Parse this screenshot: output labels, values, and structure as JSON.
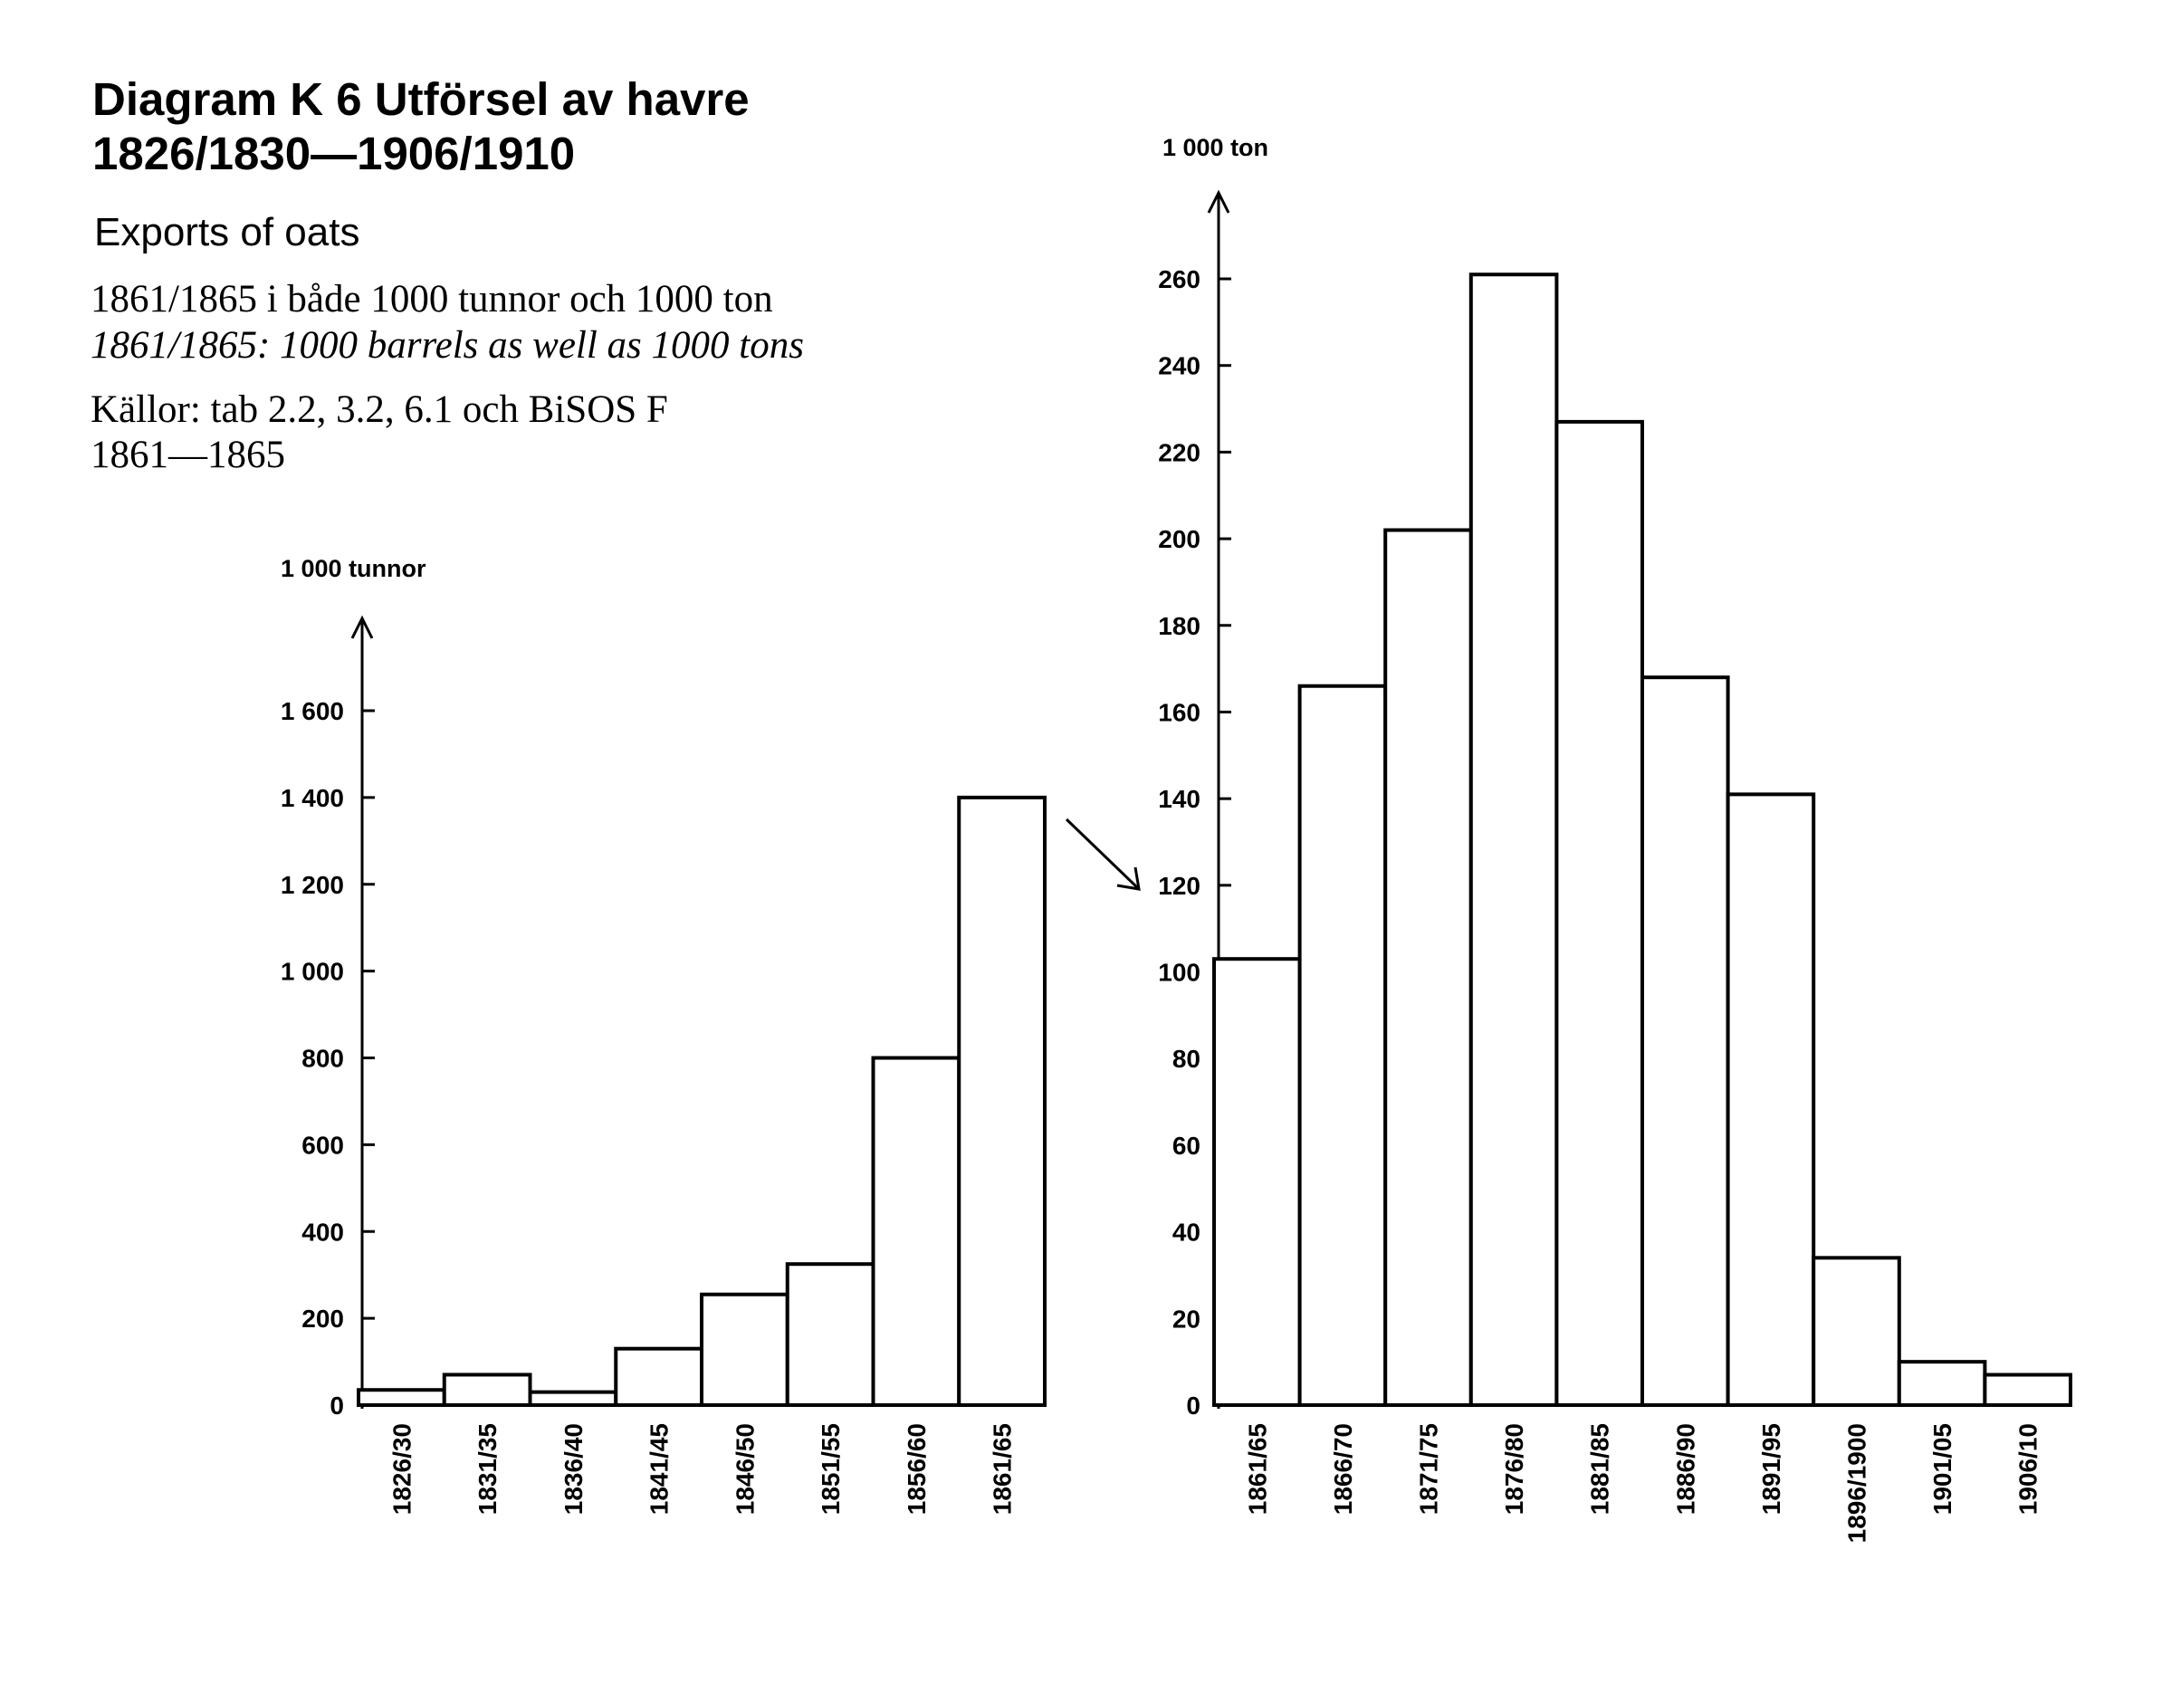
{
  "header": {
    "title_line1": "Diagram K 6 Utförsel av havre",
    "title_line2": "1826/1830—1906/1910",
    "subtitle_en": "Exports of oats",
    "note_sv": "1861/1865 i både 1000 tunnor och 1000 ton",
    "note_en": "1861/1865: 1000 barrels as well as 1000 tons",
    "sources_line1": "Källor: tab 2.2, 3.2, 6.1 och BiSOS F",
    "sources_line2": "1861—1865"
  },
  "chart_data": [
    {
      "type": "bar",
      "ylabel": "1 000 tunnor",
      "ylim": [
        0,
        1700
      ],
      "yticks": [
        0,
        200,
        400,
        600,
        800,
        1000,
        1200,
        1400,
        1600
      ],
      "ytick_labels": [
        "0",
        "200",
        "400",
        "600",
        "800",
        "1 000",
        "1 200",
        "1 400",
        "1 600"
      ],
      "categories": [
        "1826/30",
        "1831/35",
        "1836/40",
        "1841/45",
        "1846/50",
        "1851/55",
        "1856/60",
        "1861/65"
      ],
      "values": [
        35,
        70,
        30,
        130,
        255,
        325,
        800,
        1400
      ]
    },
    {
      "type": "bar",
      "ylabel": "1 000 ton",
      "ylim": [
        0,
        280
      ],
      "yticks": [
        0,
        20,
        40,
        60,
        80,
        100,
        120,
        140,
        160,
        180,
        200,
        220,
        240,
        260
      ],
      "ytick_labels": [
        "0",
        "20",
        "40",
        "60",
        "80",
        "100",
        "120",
        "140",
        "160",
        "180",
        "200",
        "220",
        "240",
        "260"
      ],
      "categories": [
        "1861/65",
        "1866/70",
        "1871/75",
        "1876/80",
        "1881/85",
        "1886/90",
        "1891/95",
        "1896/1900",
        "1901/05",
        "1906/10"
      ],
      "values": [
        103,
        166,
        202,
        261,
        227,
        168,
        141,
        34,
        10,
        7
      ]
    }
  ]
}
